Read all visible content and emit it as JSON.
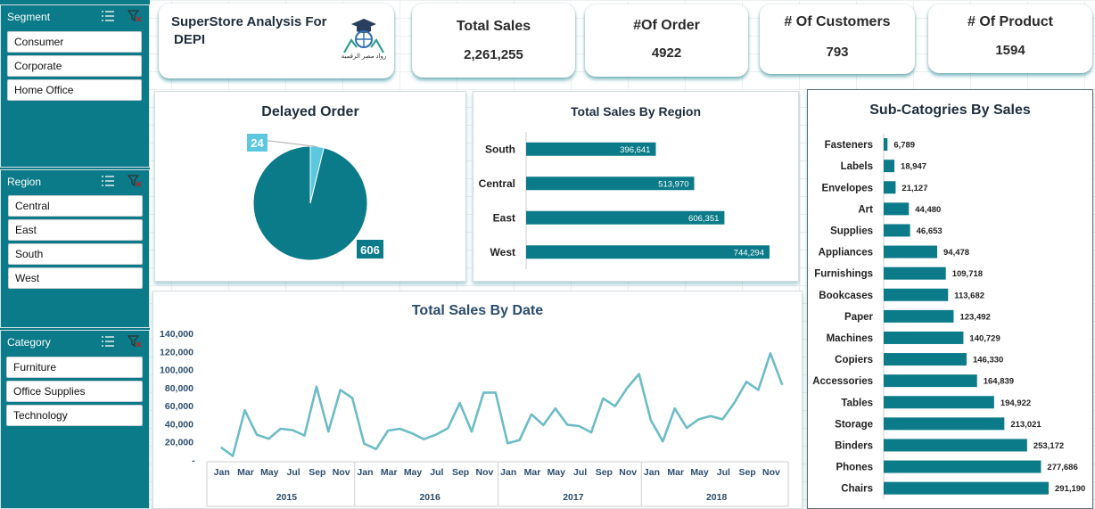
{
  "slicers": {
    "segment": {
      "title": "Segment",
      "items": [
        "Consumer",
        "Corporate",
        "Home Office"
      ]
    },
    "region": {
      "title": "Region",
      "items": [
        "Central",
        "East",
        "South",
        "West"
      ]
    },
    "category": {
      "title": "Category",
      "items": [
        "Furniture",
        "Office Supplies",
        "Technology"
      ]
    }
  },
  "header": {
    "title_line1": "SuperStore Analysis For",
    "title_line2": "DEPI",
    "logo_text": "رواد مصر الرقمية"
  },
  "kpis": {
    "total_sales": {
      "label": "Total Sales",
      "value": "2,261,255"
    },
    "orders": {
      "label": "#Of Order",
      "value": "4922"
    },
    "customers": {
      "label": "# Of Customers",
      "value": "793"
    },
    "products": {
      "label": "# Of Product",
      "value": "1594"
    }
  },
  "colors": {
    "teal": "#0b7a89",
    "light_teal": "#5bc8e0",
    "line": "#6cbcc7"
  },
  "chart_data": [
    {
      "type": "pie",
      "title": "Delayed Order",
      "values": [
        606,
        24
      ],
      "labels": [
        "606",
        "24"
      ]
    },
    {
      "type": "bar",
      "title": "Total Sales By Region",
      "categories": [
        "South",
        "Central",
        "East",
        "West"
      ],
      "values": [
        396641,
        513970,
        606351,
        744294
      ],
      "value_labels": [
        "396,641",
        "513,970",
        "606,351",
        "744,294"
      ]
    },
    {
      "type": "bar",
      "title": "Sub-Catogries By Sales",
      "categories": [
        "Fasteners",
        "Labels",
        "Envelopes",
        "Art",
        "Supplies",
        "Appliances",
        "Furnishings",
        "Bookcases",
        "Paper",
        "Machines",
        "Copiers",
        "Accessories",
        "Tables",
        "Storage",
        "Binders",
        "Phones",
        "Chairs"
      ],
      "values": [
        6789,
        18947,
        21127,
        44480,
        46653,
        94478,
        109718,
        113682,
        123492,
        140729,
        146330,
        164839,
        194922,
        213021,
        253172,
        277686,
        291190
      ],
      "value_labels": [
        "6,789",
        "18,947",
        "21,127",
        "44,480",
        "46,653",
        "94,478",
        "109,718",
        "113,682",
        "123,492",
        "140,729",
        "146,330",
        "164,839",
        "194,922",
        "213,021",
        "253,172",
        "277,686",
        "291,190"
      ]
    },
    {
      "type": "line",
      "title": "Total Sales By Date",
      "ylim": [
        0,
        140000
      ],
      "y_ticks": [
        "140,000",
        "120,000",
        "100,000",
        "80,000",
        "60,000",
        "40,000",
        "20,000",
        "-"
      ],
      "month_labels": [
        "Jan",
        "Mar",
        "May",
        "Jul",
        "Sep",
        "Nov"
      ],
      "years": [
        "2015",
        "2016",
        "2017",
        "2018"
      ],
      "values": [
        14000,
        4500,
        55000,
        28000,
        23500,
        34500,
        33000,
        27000,
        81000,
        31500,
        77500,
        68500,
        18000,
        12000,
        32500,
        34500,
        29500,
        23000,
        28000,
        35000,
        63000,
        31500,
        74500,
        74500,
        18500,
        22000,
        50500,
        38500,
        57000,
        39000,
        37500,
        30500,
        68000,
        59500,
        79500,
        95000,
        44000,
        20500,
        57000,
        35500,
        45000,
        48500,
        45000,
        63500,
        86500,
        77500,
        118000,
        83000
      ]
    }
  ]
}
